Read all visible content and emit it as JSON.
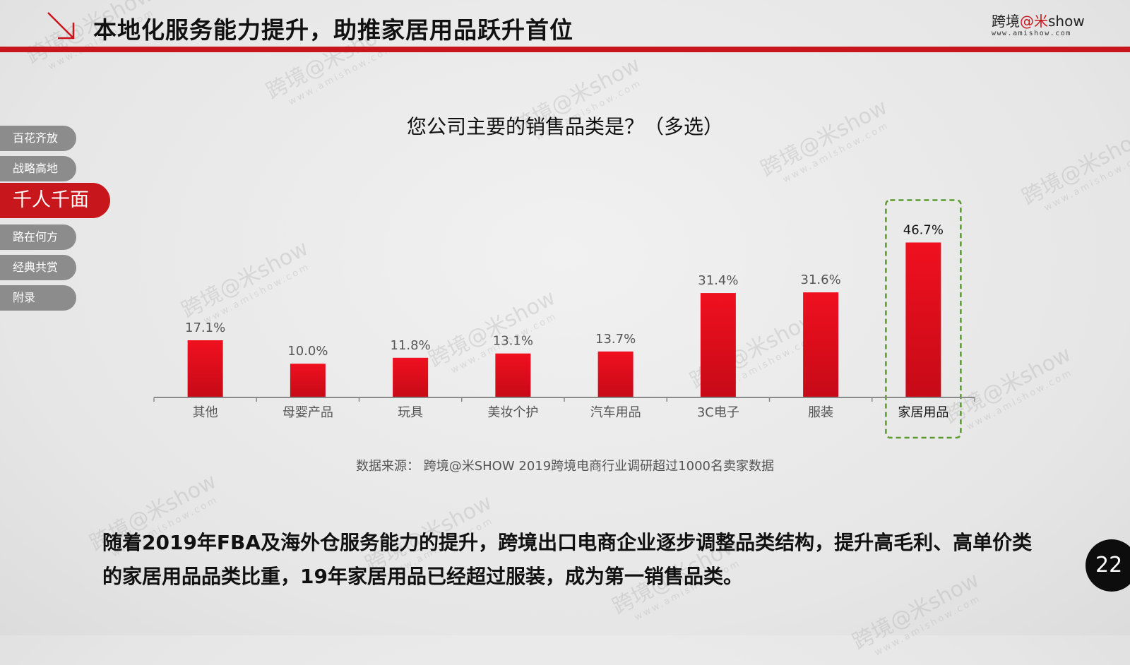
{
  "header": {
    "title": "本地化服务能力提升，助推家居用品跃升首位",
    "logo_main_prefix": "跨境",
    "logo_main_accent": "@米",
    "logo_main_suffix": "show",
    "logo_url": "www.amishow.com",
    "accent_color": "#c8161d"
  },
  "nav": {
    "items": [
      {
        "label": "百花齐放",
        "active": false
      },
      {
        "label": "战略高地",
        "active": false
      },
      {
        "label": "千人千面",
        "active": true
      },
      {
        "label": "路在何方",
        "active": false
      },
      {
        "label": "经典共赏",
        "active": false
      },
      {
        "label": "附录",
        "active": false
      }
    ]
  },
  "chart_data": {
    "type": "bar",
    "title": "您公司主要的销售品类是？（多选）",
    "categories": [
      "其他",
      "母婴产品",
      "玩具",
      "美妆个护",
      "汽车用品",
      "3C电子",
      "服装",
      "家居用品"
    ],
    "values": [
      17.1,
      10.0,
      11.8,
      13.1,
      13.7,
      31.4,
      31.6,
      46.7
    ],
    "data_labels": [
      "17.1%",
      "10.0%",
      "11.8%",
      "13.1%",
      "13.7%",
      "31.4%",
      "31.6%",
      "46.7%"
    ],
    "unit": "%",
    "ylim": [
      0,
      50
    ],
    "highlight_index": 7,
    "bar_color": "#e60f1e",
    "highlight_border_color": "#5a9a2a",
    "grid": false,
    "legend": "none"
  },
  "source_text": "数据来源： 跨境@米SHOW 2019跨境电商行业调研超过1000名卖家数据",
  "summary": "随着2019年FBA及海外仓服务能力的提升，跨境出口电商企业逐步调整品类结构，提升高毛利、高单价类的家居用品品类比重，19年家居用品已经超过服装，成为第一销售品类。",
  "page_number": "22",
  "watermark": {
    "text": "跨境@米show",
    "url": "www.amishow.com"
  }
}
